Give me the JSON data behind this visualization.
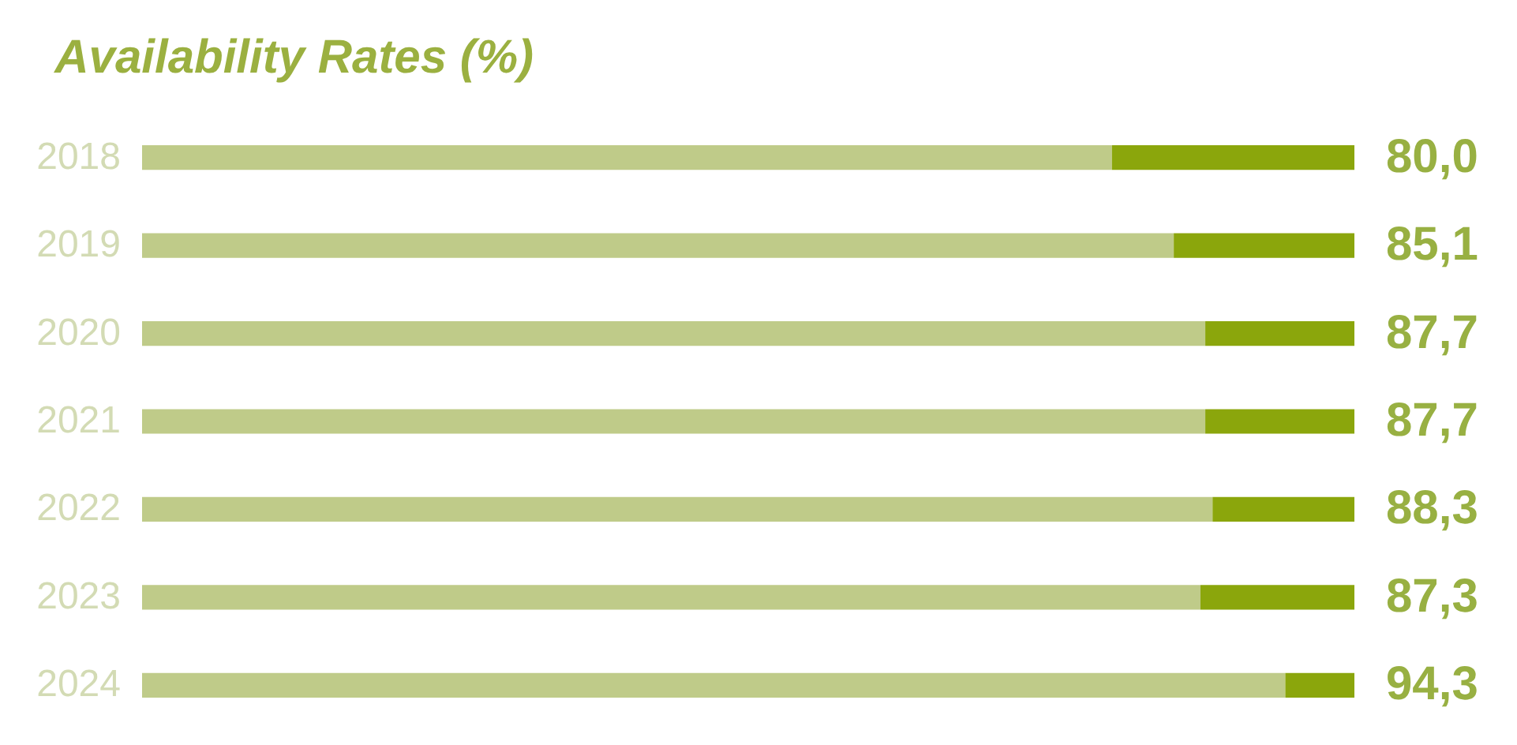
{
  "chart_data": {
    "type": "bar",
    "orientation": "horizontal",
    "stacked": true,
    "title": "Availability Rates (%)",
    "categories": [
      "2018",
      "2019",
      "2020",
      "2021",
      "2022",
      "2023",
      "2024"
    ],
    "series": [
      {
        "color": "#bfcb89",
        "values": [
          80.0,
          85.1,
          87.7,
          87.7,
          88.3,
          87.3,
          94.3
        ],
        "value_labels": [
          "80,0",
          "85,1",
          "87,7",
          "87,7",
          "88,3",
          "87,3",
          "94,3"
        ]
      },
      {
        "color": "#8ba60c",
        "values": [
          20.0,
          14.9,
          12.3,
          12.3,
          11.7,
          12.7,
          5.7
        ]
      }
    ],
    "xlim": [
      0,
      100
    ],
    "tick_labels": "y"
  }
}
